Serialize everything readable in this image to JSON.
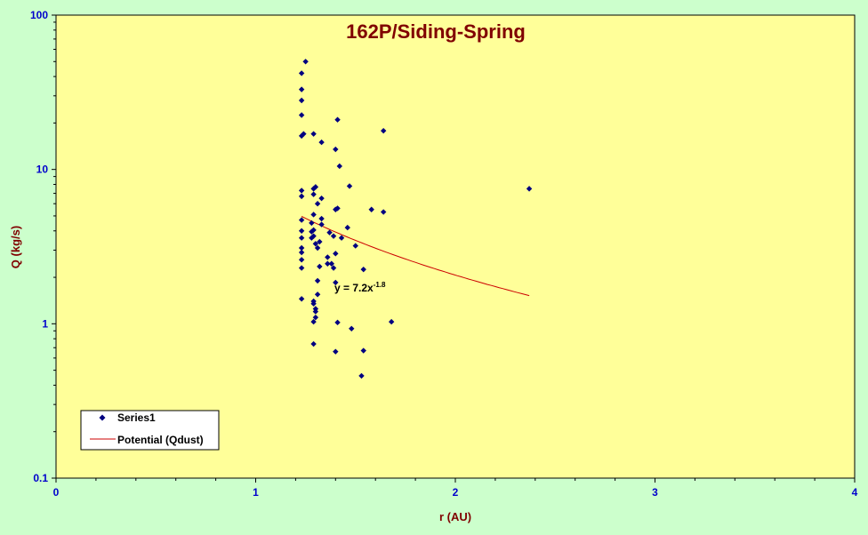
{
  "chart_data": {
    "type": "scatter",
    "title": "162P/Siding-Spring",
    "xlabel": "r (AU)",
    "ylabel": "Q (kg/s)",
    "xlim": [
      0,
      4
    ],
    "ylim": [
      0.1,
      100
    ],
    "yscale": "log",
    "x_ticks": [
      0,
      1,
      2,
      3,
      4
    ],
    "y_ticks": [
      0.1,
      1,
      10,
      100
    ],
    "x_tick_labels": [
      "0",
      "1",
      "2",
      "3",
      "4"
    ],
    "y_tick_labels": [
      "0.1",
      "1",
      "10",
      "100"
    ],
    "grid": false,
    "legend_position": "bottom-left",
    "colors": {
      "figure_background": "#ccffcc",
      "plot_background": "#ffff99",
      "series1": "#000080",
      "trendline": "#cc0000",
      "title": "#800000",
      "tick_labels": "#0000cc"
    },
    "series": [
      {
        "name": "Series1",
        "marker": "diamond",
        "points": [
          [
            1.25,
            50
          ],
          [
            1.23,
            42
          ],
          [
            1.23,
            33
          ],
          [
            1.23,
            28
          ],
          [
            1.23,
            22.5
          ],
          [
            1.23,
            16.5
          ],
          [
            1.24,
            17
          ],
          [
            1.29,
            17
          ],
          [
            1.33,
            15
          ],
          [
            1.41,
            21
          ],
          [
            1.64,
            17.8
          ],
          [
            1.4,
            13.5
          ],
          [
            1.42,
            10.5
          ],
          [
            1.47,
            7.8
          ],
          [
            1.23,
            7.3
          ],
          [
            1.23,
            6.7
          ],
          [
            1.29,
            7.5
          ],
          [
            1.3,
            7.7
          ],
          [
            1.29,
            6.9
          ],
          [
            1.33,
            6.5
          ],
          [
            1.31,
            6.0
          ],
          [
            1.41,
            5.6
          ],
          [
            1.4,
            5.5
          ],
          [
            1.58,
            5.5
          ],
          [
            1.64,
            5.3
          ],
          [
            2.37,
            7.5
          ],
          [
            1.29,
            5.1
          ],
          [
            1.33,
            4.8
          ],
          [
            1.23,
            4.7
          ],
          [
            1.28,
            4.5
          ],
          [
            1.33,
            4.4
          ],
          [
            1.46,
            4.2
          ],
          [
            1.28,
            3.95
          ],
          [
            1.29,
            4.05
          ],
          [
            1.23,
            4.0
          ],
          [
            1.23,
            3.6
          ],
          [
            1.29,
            3.7
          ],
          [
            1.28,
            3.6
          ],
          [
            1.37,
            3.9
          ],
          [
            1.39,
            3.7
          ],
          [
            1.43,
            3.6
          ],
          [
            1.32,
            3.4
          ],
          [
            1.3,
            3.3
          ],
          [
            1.31,
            3.1
          ],
          [
            1.23,
            3.1
          ],
          [
            1.23,
            2.9
          ],
          [
            1.5,
            3.2
          ],
          [
            1.4,
            2.85
          ],
          [
            1.36,
            2.7
          ],
          [
            1.23,
            2.6
          ],
          [
            1.36,
            2.45
          ],
          [
            1.38,
            2.45
          ],
          [
            1.32,
            2.35
          ],
          [
            1.23,
            2.3
          ],
          [
            1.39,
            2.3
          ],
          [
            1.54,
            2.25
          ],
          [
            1.31,
            1.9
          ],
          [
            1.4,
            1.85
          ],
          [
            1.31,
            1.55
          ],
          [
            1.23,
            1.45
          ],
          [
            1.29,
            1.4
          ],
          [
            1.29,
            1.35
          ],
          [
            1.3,
            1.25
          ],
          [
            1.3,
            1.2
          ],
          [
            1.3,
            1.1
          ],
          [
            1.29,
            1.03
          ],
          [
            1.41,
            1.02
          ],
          [
            1.68,
            1.03
          ],
          [
            1.48,
            0.93
          ],
          [
            1.29,
            0.74
          ],
          [
            1.4,
            0.66
          ],
          [
            1.54,
            0.67
          ],
          [
            1.53,
            0.46
          ]
        ]
      },
      {
        "name": "Potential (Qdust)",
        "type": "trendline",
        "equation": "y = 7.2x",
        "equation_exponent": "-1.8",
        "model": {
          "a": 7.2,
          "b": -1.8
        },
        "x_range": [
          1.23,
          2.37
        ]
      }
    ]
  }
}
